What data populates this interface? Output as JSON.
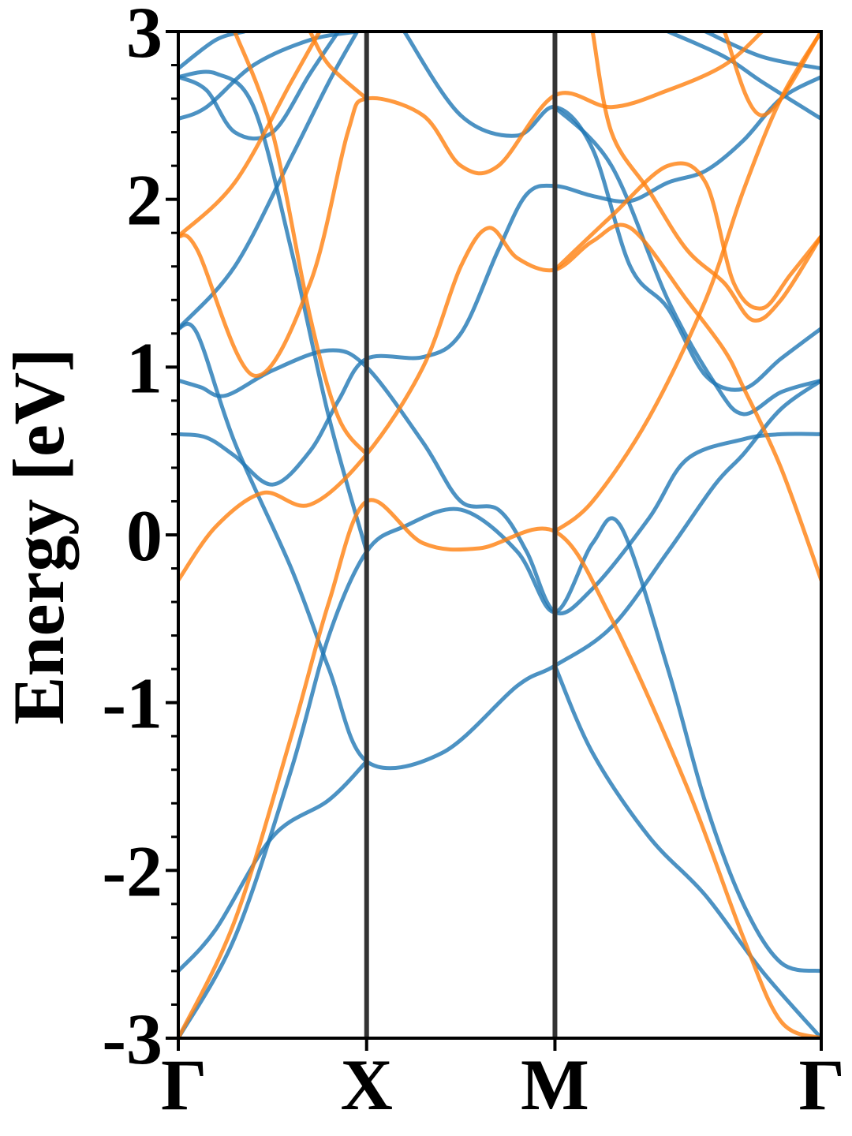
{
  "chart_data": {
    "type": "line",
    "title": "",
    "xlabel": "",
    "ylabel": "Energy [eV]",
    "ylim": [
      -3,
      3
    ],
    "xlim": [
      0,
      3.414
    ],
    "y_ticks": [
      {
        "value": 3,
        "label": "3"
      },
      {
        "value": 2,
        "label": "2"
      },
      {
        "value": 1,
        "label": "1"
      },
      {
        "value": 0,
        "label": "0"
      },
      {
        "value": -1,
        "label": "-1"
      },
      {
        "value": -2,
        "label": "-2"
      },
      {
        "value": -3,
        "label": "-3"
      }
    ],
    "y_minor_step": 0.2,
    "x_ticks": [
      {
        "value": 0,
        "label": "Γ"
      },
      {
        "value": 1,
        "label": "X"
      },
      {
        "value": 2,
        "label": "M"
      },
      {
        "value": 3.414,
        "label": "Γ"
      }
    ],
    "high_symmetry_lines": [
      1,
      2
    ],
    "grid": false,
    "legend": "none",
    "colors": {
      "blue": "#1f77b4",
      "orange": "#ff7f0e",
      "divider": "#333333"
    },
    "series": [
      {
        "color": "blue",
        "points": [
          [
            0,
            0.6
          ],
          [
            0.15,
            0.58
          ],
          [
            0.3,
            0.47
          ],
          [
            0.5,
            0.3
          ],
          [
            0.7,
            0.5
          ],
          [
            0.85,
            0.8
          ],
          [
            1,
            1.05
          ],
          [
            1.3,
            1.06
          ],
          [
            1.5,
            1.2
          ],
          [
            1.7,
            1.7
          ],
          [
            1.85,
            2.03
          ],
          [
            2,
            2.08
          ],
          [
            2.2,
            2.02
          ],
          [
            2.4,
            1.99
          ],
          [
            2.6,
            2.1
          ],
          [
            2.8,
            2.17
          ],
          [
            3.0,
            2.35
          ],
          [
            3.2,
            2.6
          ],
          [
            3.414,
            2.73
          ]
        ]
      },
      {
        "color": "blue",
        "points": [
          [
            0,
            0.92
          ],
          [
            0.12,
            0.88
          ],
          [
            0.25,
            0.83
          ],
          [
            0.5,
            0.98
          ],
          [
            0.8,
            1.1
          ],
          [
            1,
            1.0
          ],
          [
            1.3,
            0.55
          ],
          [
            1.5,
            0.2
          ],
          [
            1.7,
            0.15
          ],
          [
            1.85,
            -0.1
          ],
          [
            2,
            -0.46
          ],
          [
            2.2,
            -0.32
          ],
          [
            2.5,
            0.1
          ],
          [
            2.7,
            0.45
          ],
          [
            3.0,
            0.57
          ],
          [
            3.2,
            0.6
          ],
          [
            3.414,
            0.6
          ]
        ]
      },
      {
        "color": "blue",
        "points": [
          [
            0,
            1.23
          ],
          [
            0.1,
            1.2
          ],
          [
            0.3,
            0.55
          ],
          [
            0.6,
            -0.2
          ],
          [
            0.8,
            -0.8
          ],
          [
            1,
            -1.35
          ],
          [
            1.4,
            -1.3
          ],
          [
            1.8,
            -0.9
          ],
          [
            2,
            -0.78
          ],
          [
            2.3,
            -0.55
          ],
          [
            2.6,
            -0.1
          ],
          [
            2.85,
            0.3
          ],
          [
            3.0,
            0.48
          ],
          [
            3.2,
            0.75
          ],
          [
            3.414,
            0.92
          ]
        ]
      },
      {
        "color": "blue",
        "points": [
          [
            0,
            -2.6
          ],
          [
            0.2,
            -2.35
          ],
          [
            0.5,
            -1.8
          ],
          [
            0.8,
            -1.58
          ],
          [
            1,
            -1.35
          ]
        ]
      },
      {
        "color": "blue",
        "points": [
          [
            0,
            2.48
          ],
          [
            0.15,
            2.55
          ],
          [
            0.4,
            2.8
          ],
          [
            0.7,
            2.95
          ],
          [
            0.95,
            3.0
          ]
        ]
      },
      {
        "color": "blue",
        "points": [
          [
            0,
            2.73
          ],
          [
            0.15,
            2.65
          ],
          [
            0.3,
            2.4
          ],
          [
            0.5,
            2.4
          ],
          [
            0.7,
            2.75
          ],
          [
            0.85,
            3.0
          ]
        ]
      },
      {
        "color": "blue",
        "points": [
          [
            0,
            2.78
          ],
          [
            0.2,
            2.95
          ],
          [
            0.35,
            3.0
          ]
        ]
      },
      {
        "color": "blue",
        "points": [
          [
            0,
            1.23
          ],
          [
            0.3,
            1.6
          ],
          [
            0.6,
            2.25
          ],
          [
            0.8,
            2.7
          ],
          [
            0.95,
            3.0
          ]
        ]
      },
      {
        "color": "blue",
        "points": [
          [
            0,
            -3.0
          ],
          [
            0.3,
            -2.4
          ],
          [
            0.6,
            -1.4
          ],
          [
            0.8,
            -0.6
          ],
          [
            1,
            -0.1
          ],
          [
            1.2,
            0.05
          ],
          [
            1.5,
            0.15
          ],
          [
            1.8,
            -0.1
          ],
          [
            2,
            -0.46
          ],
          [
            2.2,
            -0.05
          ],
          [
            2.35,
            0.05
          ],
          [
            2.6,
            -0.8
          ],
          [
            2.8,
            -1.6
          ],
          [
            3.0,
            -2.2
          ],
          [
            3.2,
            -2.55
          ],
          [
            3.414,
            -2.6
          ]
        ]
      },
      {
        "color": "blue",
        "points": [
          [
            0,
            2.73
          ],
          [
            0.2,
            2.75
          ],
          [
            0.4,
            2.55
          ],
          [
            0.6,
            1.7
          ],
          [
            0.8,
            0.7
          ],
          [
            1,
            -0.1
          ]
        ]
      },
      {
        "color": "blue",
        "points": [
          [
            1.2,
            3.0
          ],
          [
            1.5,
            2.5
          ],
          [
            1.8,
            2.38
          ],
          [
            2,
            2.55
          ],
          [
            2.2,
            2.3
          ],
          [
            2.4,
            1.6
          ],
          [
            2.6,
            1.35
          ],
          [
            2.8,
            0.95
          ],
          [
            3.0,
            0.87
          ],
          [
            3.2,
            1.05
          ],
          [
            3.414,
            1.23
          ]
        ]
      },
      {
        "color": "blue",
        "points": [
          [
            2,
            2.55
          ],
          [
            2.3,
            2.2
          ],
          [
            2.6,
            1.4
          ],
          [
            2.85,
            0.9
          ],
          [
            3.0,
            0.72
          ],
          [
            3.2,
            0.85
          ],
          [
            3.414,
            0.92
          ]
        ]
      },
      {
        "color": "blue",
        "points": [
          [
            2,
            -0.78
          ],
          [
            2.2,
            -1.3
          ],
          [
            2.5,
            -1.8
          ],
          [
            2.8,
            -2.15
          ],
          [
            3.1,
            -2.6
          ],
          [
            3.414,
            -3.0
          ]
        ]
      },
      {
        "color": "blue",
        "points": [
          [
            2.6,
            3.0
          ],
          [
            2.9,
            2.85
          ],
          [
            3.1,
            2.7
          ],
          [
            3.414,
            2.48
          ]
        ]
      },
      {
        "color": "blue",
        "points": [
          [
            2.8,
            3.0
          ],
          [
            3.1,
            2.85
          ],
          [
            3.414,
            2.78
          ]
        ]
      },
      {
        "color": "orange",
        "points": [
          [
            0,
            -0.27
          ],
          [
            0.2,
            0.05
          ],
          [
            0.45,
            0.25
          ],
          [
            0.7,
            0.18
          ],
          [
            1,
            0.48
          ],
          [
            1.3,
            1.0
          ],
          [
            1.5,
            1.6
          ],
          [
            1.65,
            1.83
          ],
          [
            1.8,
            1.65
          ],
          [
            2,
            1.58
          ],
          [
            2.2,
            1.75
          ],
          [
            2.4,
            1.83
          ],
          [
            2.7,
            1.4
          ],
          [
            2.9,
            1.1
          ],
          [
            3.0,
            0.88
          ],
          [
            3.2,
            0.4
          ],
          [
            3.414,
            -0.27
          ]
        ]
      },
      {
        "color": "orange",
        "points": [
          [
            0,
            1.78
          ],
          [
            0.1,
            1.7
          ],
          [
            0.4,
            0.95
          ],
          [
            0.7,
            1.5
          ],
          [
            0.9,
            2.4
          ],
          [
            1,
            2.6
          ],
          [
            1.3,
            2.5
          ],
          [
            1.5,
            2.2
          ],
          [
            1.7,
            2.2
          ],
          [
            2,
            2.62
          ],
          [
            2.3,
            2.55
          ],
          [
            2.6,
            2.65
          ],
          [
            2.9,
            2.8
          ],
          [
            3.1,
            3.0
          ]
        ]
      },
      {
        "color": "orange",
        "points": [
          [
            0,
            -3.0
          ],
          [
            0.3,
            -2.3
          ],
          [
            0.6,
            -1.2
          ],
          [
            0.8,
            -0.4
          ],
          [
            1,
            0.2
          ],
          [
            1.3,
            -0.05
          ],
          [
            1.6,
            -0.08
          ],
          [
            2,
            0.02
          ],
          [
            2.3,
            -0.5
          ],
          [
            2.7,
            -1.5
          ],
          [
            3.0,
            -2.4
          ],
          [
            3.2,
            -2.9
          ],
          [
            3.414,
            -3.0
          ]
        ]
      },
      {
        "color": "orange",
        "points": [
          [
            0,
            1.78
          ],
          [
            0.3,
            2.1
          ],
          [
            0.6,
            2.7
          ],
          [
            0.75,
            3.0
          ]
        ]
      },
      {
        "color": "orange",
        "points": [
          [
            0.3,
            3.0
          ],
          [
            0.5,
            2.4
          ],
          [
            0.7,
            1.3
          ],
          [
            0.85,
            0.7
          ],
          [
            1,
            0.48
          ]
        ]
      },
      {
        "color": "orange",
        "points": [
          [
            0.7,
            3.0
          ],
          [
            0.8,
            2.8
          ],
          [
            1,
            2.6
          ]
        ]
      },
      {
        "color": "orange",
        "points": [
          [
            2,
            0.02
          ],
          [
            2.2,
            0.2
          ],
          [
            2.5,
            0.7
          ],
          [
            2.8,
            1.4
          ],
          [
            3.0,
            2.05
          ],
          [
            3.2,
            2.6
          ],
          [
            3.414,
            3.0
          ]
        ]
      },
      {
        "color": "orange",
        "points": [
          [
            2.2,
            3.0
          ],
          [
            2.3,
            2.4
          ],
          [
            2.5,
            2.05
          ],
          [
            2.7,
            1.7
          ],
          [
            2.9,
            1.5
          ],
          [
            3.05,
            1.28
          ],
          [
            3.2,
            1.4
          ],
          [
            3.414,
            1.78
          ]
        ]
      },
      {
        "color": "orange",
        "points": [
          [
            2,
            1.58
          ],
          [
            2.3,
            1.9
          ],
          [
            2.6,
            2.2
          ],
          [
            2.8,
            2.1
          ],
          [
            2.95,
            1.5
          ],
          [
            3.1,
            1.35
          ],
          [
            3.25,
            1.55
          ],
          [
            3.414,
            1.78
          ]
        ]
      },
      {
        "color": "orange",
        "points": [
          [
            2.9,
            3.0
          ],
          [
            3.1,
            2.5
          ],
          [
            3.414,
            3.0
          ]
        ]
      }
    ]
  }
}
